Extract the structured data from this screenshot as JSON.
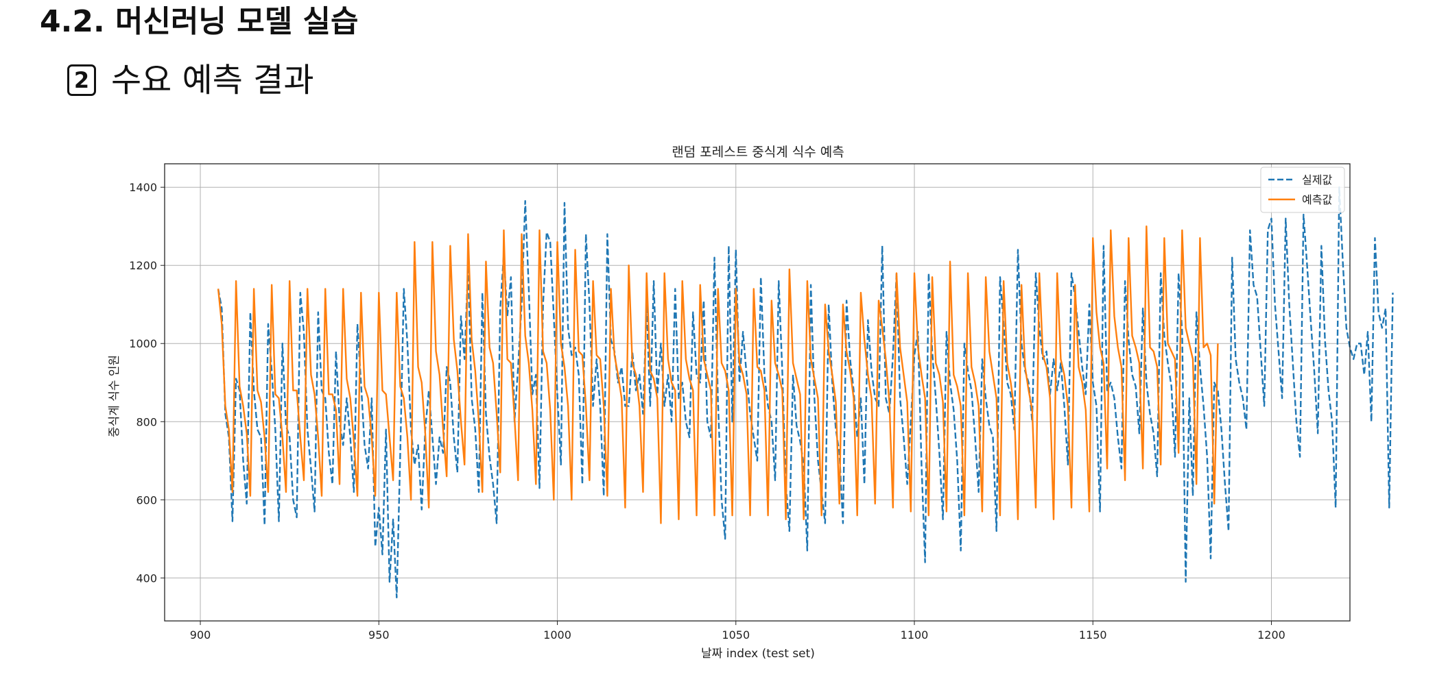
{
  "page": {
    "heading": "4.2. 머신러닝 모델 실습",
    "subheading_badge": "2",
    "subheading": "수요 예측 결과"
  },
  "chart_data": {
    "type": "line",
    "title": "랜덤 포레스트 중식계 식수 예측",
    "xlabel": "날짜 index (test set)",
    "ylabel": "중식계 식수 인원",
    "xlim": [
      890,
      1222
    ],
    "ylim": [
      290,
      1460
    ],
    "xticks": [
      900,
      950,
      1000,
      1050,
      1100,
      1150,
      1200
    ],
    "yticks": [
      400,
      600,
      800,
      1000,
      1200,
      1400
    ],
    "grid": true,
    "legend_position": "top-right",
    "series": [
      {
        "name": "실제값",
        "color": "#1f77b4",
        "style": "dashed",
        "x_start": 905,
        "values": [
          1140,
          1090,
          820,
          760,
          545,
          910,
          880,
          700,
          590,
          1080,
          880,
          780,
          760,
          535,
          1050,
          930,
          780,
          545,
          1000,
          790,
          760,
          600,
          555,
          1130,
          1030,
          780,
          680,
          570,
          1080,
          880,
          860,
          720,
          640,
          980,
          800,
          740,
          860,
          760,
          620,
          1050,
          900,
          740,
          680,
          860,
          480,
          580,
          460,
          780,
          390,
          550,
          350,
          720,
          1140,
          1000,
          780,
          690,
          740,
          575,
          780,
          880,
          760,
          640,
          760,
          720,
          940,
          900,
          760,
          670,
          1070,
          960,
          1200,
          860,
          780,
          620,
          1130,
          820,
          710,
          640,
          540,
          1090,
          1230,
          1070,
          1170,
          800,
          940,
          1100,
          1365,
          1140,
          870,
          920,
          630,
          1100,
          1285,
          1260,
          1070,
          870,
          690,
          1360,
          1040,
          970,
          990,
          920,
          640,
          1280,
          1100,
          840,
          960,
          840,
          610,
          1280,
          1010,
          980,
          900,
          940,
          840,
          840,
          980,
          880,
          920,
          820,
          1100,
          840,
          1160,
          870,
          1000,
          840,
          920,
          800,
          1140,
          860,
          900,
          800,
          760,
          1080,
          920,
          900,
          1110,
          800,
          760,
          1220,
          850,
          600,
          500,
          1250,
          800,
          1240,
          900,
          1030,
          920,
          820,
          760,
          700,
          1170,
          920,
          840,
          800,
          650,
          1160,
          930,
          640,
          520,
          920,
          790,
          750,
          690,
          470,
          1150,
          860,
          700,
          620,
          540,
          1100,
          900,
          780,
          720,
          540,
          1110,
          960,
          880,
          760,
          860,
          640,
          1060,
          930,
          860,
          840,
          1250,
          860,
          820,
          970,
          1180,
          860,
          760,
          640,
          800,
          970,
          1030,
          690,
          440,
          1180,
          980,
          860,
          720,
          550,
          1030,
          900,
          830,
          700,
          470,
          1000,
          930,
          880,
          760,
          620,
          960,
          860,
          790,
          760,
          520,
          1170,
          1050,
          900,
          870,
          780,
          1240,
          1000,
          930,
          900,
          800,
          1180,
          1040,
          960,
          980,
          870,
          960,
          880,
          950,
          840,
          690,
          1180,
          1120,
          1030,
          940,
          870,
          1100,
          900,
          840,
          570,
          1250,
          880,
          900,
          860,
          760,
          680,
          1160,
          1010,
          920,
          890,
          770,
          1090,
          900,
          820,
          770,
          660,
          1180,
          1020,
          950,
          890,
          710,
          1180,
          1030,
          390,
          860,
          610,
          1080,
          940,
          840,
          710,
          450,
          900,
          880,
          780,
          640,
          520,
          1220,
          960,
          900,
          860,
          780,
          1290,
          1150,
          1120,
          980,
          840,
          1290,
          1320,
          1100,
          980,
          860,
          1320,
          1100,
          950,
          800,
          710,
          1330,
          1200,
          1060,
          930,
          770,
          1250,
          1010,
          880,
          800,
          580,
          1400,
          1210,
          1040,
          990,
          960,
          1000,
          1000,
          920,
          1030,
          800,
          1270,
          1080,
          1040,
          1090,
          580,
          1130
        ]
      },
      {
        "name": "예측값",
        "color": "#ff7f0e",
        "style": "solid",
        "x_start": 905,
        "values": [
          1140,
          1050,
          840,
          780,
          620,
          1160,
          890,
          840,
          770,
          610,
          1140,
          880,
          850,
          760,
          620,
          1150,
          870,
          860,
          760,
          620,
          1160,
          880,
          880,
          760,
          650,
          1140,
          920,
          870,
          760,
          610,
          1140,
          870,
          870,
          830,
          640,
          1140,
          910,
          860,
          750,
          610,
          1130,
          890,
          860,
          760,
          610,
          1130,
          880,
          870,
          760,
          650,
          1130,
          890,
          860,
          760,
          600,
          1260,
          940,
          900,
          770,
          580,
          1260,
          980,
          920,
          780,
          660,
          1250,
          1010,
          930,
          800,
          690,
          1280,
          1010,
          930,
          800,
          620,
          1210,
          990,
          950,
          820,
          670,
          1290,
          960,
          950,
          810,
          650,
          1280,
          1020,
          950,
          830,
          640,
          1290,
          980,
          950,
          830,
          600,
          1260,
          1000,
          940,
          840,
          600,
          1240,
          980,
          970,
          840,
          650,
          1160,
          970,
          960,
          840,
          610,
          1140,
          970,
          920,
          860,
          580,
          1200,
          950,
          920,
          840,
          620,
          1180,
          930,
          910,
          860,
          540,
          1180,
          960,
          900,
          880,
          550,
          1160,
          960,
          910,
          880,
          560,
          1150,
          960,
          920,
          880,
          560,
          1140,
          950,
          930,
          880,
          560,
          1140,
          950,
          920,
          870,
          560,
          1140,
          940,
          930,
          880,
          560,
          1110,
          950,
          920,
          880,
          550,
          1190,
          950,
          910,
          870,
          550,
          1160,
          960,
          910,
          860,
          560,
          1100,
          980,
          920,
          850,
          590,
          1100,
          980,
          930,
          860,
          560,
          1130,
          1010,
          920,
          860,
          590,
          1110,
          1040,
          960,
          850,
          580,
          1180,
          990,
          920,
          850,
          570,
          1180,
          990,
          920,
          860,
          560,
          1170,
          950,
          920,
          850,
          570,
          1210,
          920,
          890,
          840,
          560,
          1180,
          940,
          900,
          840,
          570,
          1170,
          980,
          920,
          860,
          560,
          1160,
          950,
          900,
          830,
          550,
          1150,
          940,
          880,
          830,
          580,
          1180,
          970,
          940,
          860,
          550,
          1180,
          960,
          920,
          840,
          580,
          1150,
          940,
          900,
          830,
          570,
          1270,
          1080,
          990,
          950,
          680,
          1290,
          1070,
          990,
          940,
          650,
          1270,
          1020,
          990,
          950,
          680,
          1300,
          990,
          980,
          940,
          690,
          1270,
          1000,
          980,
          960,
          720,
          1290,
          1040,
          1000,
          960,
          640,
          1270,
          990,
          1000,
          970,
          590,
          1000
        ]
      }
    ]
  }
}
